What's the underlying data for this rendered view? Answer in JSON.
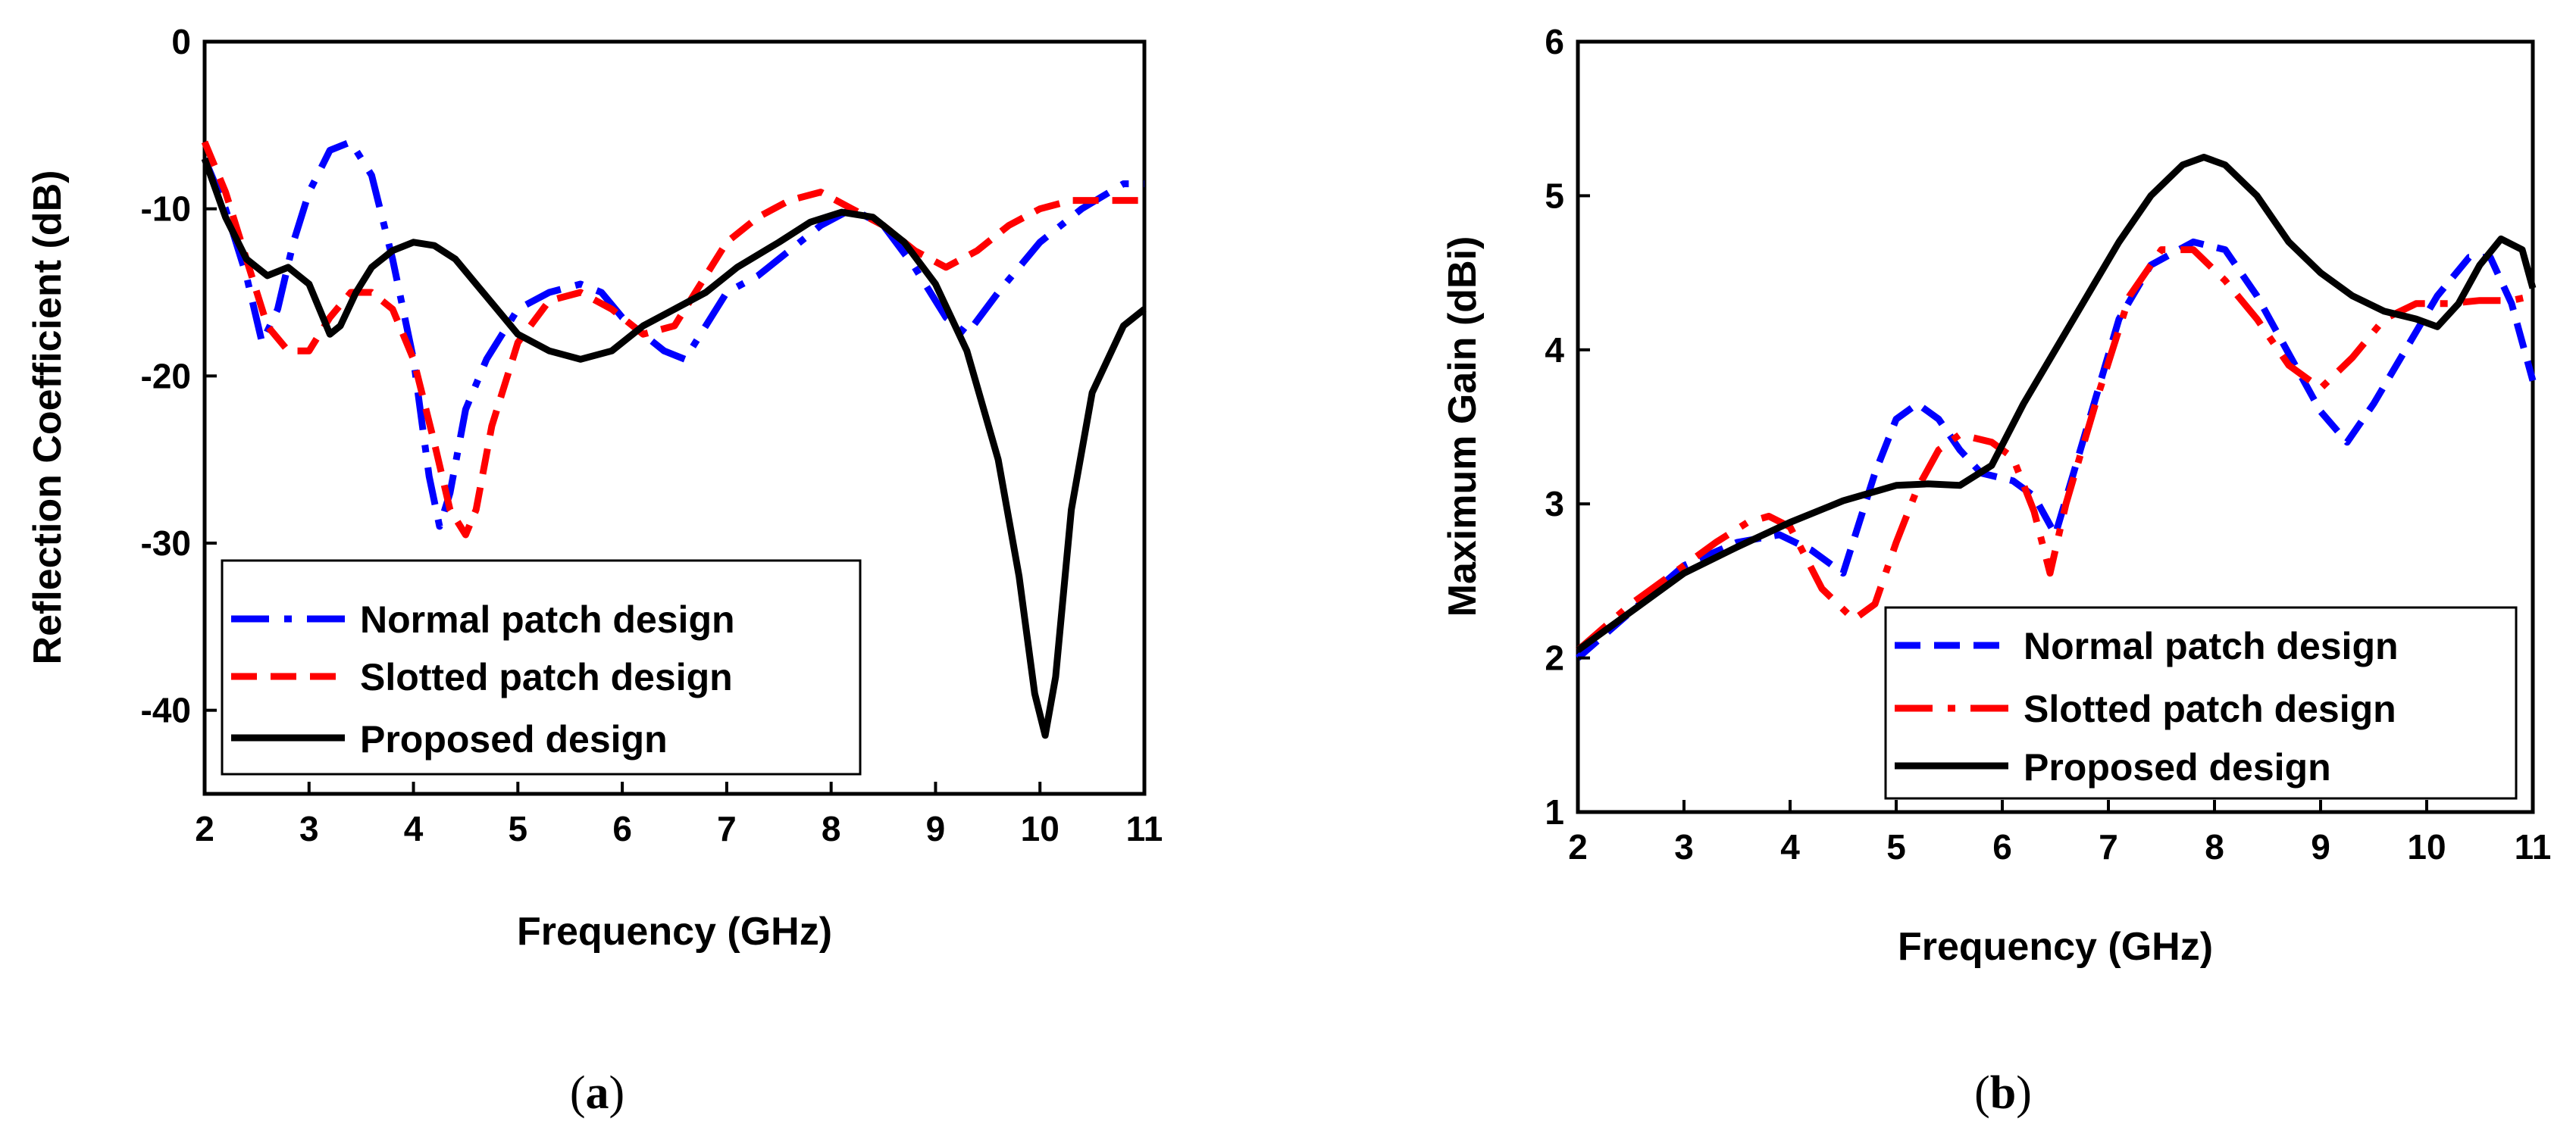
{
  "chart_data": [
    {
      "type": "line",
      "panel": "a",
      "caption": {
        "open": "(",
        "letter": "a",
        "close": ")"
      },
      "xlabel": "Frequency (GHz)",
      "ylabel": "Reflection Coefficient (dB)",
      "xlim": [
        2,
        11
      ],
      "ylim": [
        -45,
        0
      ],
      "xticks": [
        2,
        3,
        4,
        5,
        6,
        7,
        8,
        9,
        10,
        11
      ],
      "yticks": [
        0,
        -10,
        -20,
        -30,
        -40
      ],
      "grid": false,
      "legend_position": "bottom-left",
      "series": [
        {
          "name": "Normal patch design",
          "color": "#0000ff",
          "dash": "dashdot",
          "x": [
            2,
            2.2,
            2.4,
            2.55,
            2.7,
            2.85,
            3.0,
            3.2,
            3.4,
            3.6,
            3.8,
            4.0,
            4.15,
            4.25,
            4.35,
            4.5,
            4.7,
            5.0,
            5.3,
            5.6,
            5.8,
            6.0,
            6.2,
            6.4,
            6.6,
            6.8,
            7.0,
            7.3,
            7.6,
            7.9,
            8.2,
            8.5,
            8.8,
            9.1,
            9.3,
            9.6,
            10.0,
            10.4,
            10.8,
            11
          ],
          "y": [
            -7,
            -10,
            -14,
            -18,
            -16,
            -12,
            -9,
            -6.5,
            -6,
            -8,
            -13,
            -19,
            -26,
            -29,
            -27,
            -22,
            -19,
            -16,
            -15,
            -14.5,
            -15,
            -16.5,
            -17.5,
            -18.5,
            -19,
            -17,
            -15,
            -14,
            -12.5,
            -11,
            -10,
            -11,
            -13.5,
            -16.5,
            -17.5,
            -15,
            -12,
            -10,
            -8.5,
            -8.5
          ]
        },
        {
          "name": "Slotted patch design",
          "color": "#ff0000",
          "dash": "dashed",
          "x": [
            2,
            2.2,
            2.4,
            2.6,
            2.8,
            3.0,
            3.2,
            3.4,
            3.6,
            3.8,
            4.0,
            4.2,
            4.35,
            4.5,
            4.6,
            4.75,
            5.0,
            5.3,
            5.6,
            5.9,
            6.2,
            6.5,
            6.8,
            7.0,
            7.3,
            7.6,
            7.9,
            8.2,
            8.5,
            8.8,
            9.1,
            9.4,
            9.7,
            10.0,
            10.3,
            10.6,
            11
          ],
          "y": [
            -6,
            -9,
            -13,
            -17,
            -18.5,
            -18.5,
            -16.5,
            -15,
            -15,
            -16,
            -19,
            -24,
            -28,
            -29.5,
            -28,
            -23,
            -18,
            -15.5,
            -15,
            -16,
            -17.5,
            -17,
            -14,
            -12,
            -10.5,
            -9.5,
            -9,
            -10,
            -11,
            -12.5,
            -13.5,
            -12.5,
            -11,
            -10,
            -9.5,
            -9.5,
            -9.5
          ]
        },
        {
          "name": "Proposed design",
          "color": "#000000",
          "dash": "solid",
          "x": [
            2,
            2.2,
            2.4,
            2.6,
            2.8,
            3.0,
            3.1,
            3.2,
            3.3,
            3.45,
            3.6,
            3.8,
            4.0,
            4.2,
            4.4,
            4.6,
            4.8,
            5.0,
            5.3,
            5.6,
            5.9,
            6.2,
            6.5,
            6.8,
            7.1,
            7.5,
            7.8,
            8.1,
            8.4,
            8.7,
            9.0,
            9.3,
            9.6,
            9.8,
            9.95,
            10.05,
            10.15,
            10.3,
            10.5,
            10.8,
            11
          ],
          "y": [
            -7,
            -10.5,
            -13,
            -14,
            -13.5,
            -14.5,
            -16,
            -17.5,
            -17,
            -15,
            -13.5,
            -12.5,
            -12,
            -12.2,
            -13,
            -14.5,
            -16,
            -17.5,
            -18.5,
            -19,
            -18.5,
            -17,
            -16,
            -15,
            -13.5,
            -12,
            -10.8,
            -10.2,
            -10.5,
            -12,
            -14.5,
            -18.5,
            -25,
            -32,
            -39,
            -41.5,
            -38,
            -28,
            -21,
            -17,
            -16
          ]
        }
      ]
    },
    {
      "type": "line",
      "panel": "b",
      "caption": {
        "open": "(",
        "letter": "b",
        "close": ")"
      },
      "xlabel": "Frequency (GHz)",
      "ylabel": "Maximum Gain (dBi)",
      "xlim": [
        2,
        11
      ],
      "ylim": [
        1,
        6
      ],
      "xticks": [
        2,
        3,
        4,
        5,
        6,
        7,
        8,
        9,
        10,
        11
      ],
      "yticks": [
        1,
        2,
        3,
        4,
        5,
        6
      ],
      "grid": false,
      "legend_position": "bottom-right",
      "series": [
        {
          "name": "Normal patch design",
          "color": "#0000ff",
          "dash": "dashed",
          "x": [
            2,
            2.5,
            3.0,
            3.5,
            3.9,
            4.2,
            4.5,
            4.8,
            5.0,
            5.2,
            5.4,
            5.6,
            5.8,
            6.1,
            6.3,
            6.5,
            6.8,
            7.1,
            7.4,
            7.8,
            8.1,
            8.4,
            8.8,
            9.0,
            9.25,
            9.5,
            9.8,
            10.1,
            10.4,
            10.6,
            10.8,
            11
          ],
          "y": [
            2.0,
            2.3,
            2.6,
            2.75,
            2.8,
            2.7,
            2.55,
            3.2,
            3.55,
            3.65,
            3.55,
            3.35,
            3.2,
            3.15,
            3.05,
            2.8,
            3.5,
            4.2,
            4.55,
            4.7,
            4.65,
            4.35,
            3.85,
            3.6,
            3.4,
            3.65,
            4.0,
            4.35,
            4.6,
            4.6,
            4.3,
            3.8
          ]
        },
        {
          "name": "Slotted patch design",
          "color": "#ff0000",
          "dash": "dashdot",
          "x": [
            2,
            2.5,
            3.0,
            3.3,
            3.6,
            3.8,
            4.0,
            4.3,
            4.6,
            4.8,
            5.0,
            5.2,
            5.4,
            5.6,
            5.9,
            6.1,
            6.3,
            6.45,
            6.6,
            6.9,
            7.2,
            7.5,
            7.8,
            8.1,
            8.4,
            8.7,
            9.0,
            9.3,
            9.6,
            9.9,
            10.2,
            10.5,
            10.8,
            11
          ],
          "y": [
            2.05,
            2.35,
            2.6,
            2.75,
            2.88,
            2.92,
            2.85,
            2.45,
            2.25,
            2.35,
            2.75,
            3.1,
            3.35,
            3.45,
            3.4,
            3.3,
            2.95,
            2.55,
            3.0,
            3.7,
            4.35,
            4.65,
            4.65,
            4.45,
            4.2,
            3.9,
            3.75,
            3.95,
            4.2,
            4.3,
            4.3,
            4.32,
            4.32,
            4.35
          ]
        },
        {
          "name": "Proposed design",
          "color": "#000000",
          "dash": "solid",
          "x": [
            2,
            2.5,
            3.0,
            3.5,
            4.0,
            4.5,
            5.0,
            5.3,
            5.6,
            5.9,
            6.2,
            6.5,
            6.8,
            7.1,
            7.4,
            7.7,
            7.9,
            8.1,
            8.4,
            8.7,
            9.0,
            9.3,
            9.6,
            9.9,
            10.1,
            10.3,
            10.5,
            10.7,
            10.9,
            11
          ],
          "y": [
            2.05,
            2.3,
            2.55,
            2.72,
            2.88,
            3.02,
            3.12,
            3.13,
            3.12,
            3.25,
            3.65,
            4.0,
            4.35,
            4.7,
            5.0,
            5.2,
            5.25,
            5.2,
            5.0,
            4.7,
            4.5,
            4.35,
            4.25,
            4.2,
            4.15,
            4.3,
            4.55,
            4.72,
            4.65,
            4.4
          ]
        }
      ]
    }
  ]
}
